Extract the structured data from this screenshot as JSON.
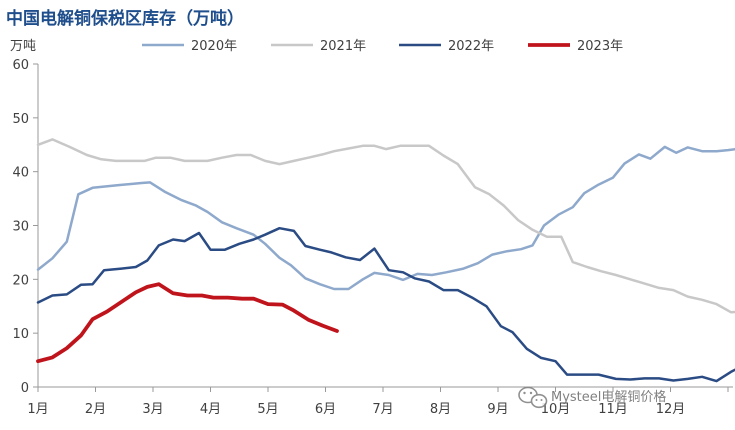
{
  "chart_data": {
    "type": "line",
    "title": "中国电解铜保税区库存（万吨）",
    "ylabel": "万吨",
    "ylim": [
      0,
      60
    ],
    "yticks": [
      0,
      10,
      20,
      30,
      40,
      50,
      60
    ],
    "xlim": [
      0,
      12
    ],
    "months": [
      "1月",
      "2月",
      "3月",
      "4月",
      "5月",
      "6月",
      "7月",
      "8月",
      "9月",
      "10月",
      "11月",
      "12月"
    ],
    "grid": false,
    "legend_position": "top",
    "series": [
      {
        "name": "2020年",
        "color": "#8ea9cc",
        "width": 2.5,
        "points": [
          [
            0.0,
            21.8
          ],
          [
            0.25,
            23.9
          ],
          [
            0.5,
            27.0
          ],
          [
            0.7,
            35.8
          ],
          [
            0.95,
            37.0
          ],
          [
            1.4,
            37.5
          ],
          [
            1.8,
            37.9
          ],
          [
            1.95,
            38.0
          ],
          [
            2.2,
            36.3
          ],
          [
            2.5,
            34.7
          ],
          [
            2.75,
            33.7
          ],
          [
            2.95,
            32.5
          ],
          [
            3.2,
            30.6
          ],
          [
            3.45,
            29.5
          ],
          [
            3.75,
            28.3
          ],
          [
            3.95,
            26.6
          ],
          [
            4.2,
            24.0
          ],
          [
            4.4,
            22.6
          ],
          [
            4.65,
            20.2
          ],
          [
            4.9,
            19.1
          ],
          [
            5.15,
            18.2
          ],
          [
            5.4,
            18.2
          ],
          [
            5.65,
            20.0
          ],
          [
            5.85,
            21.2
          ],
          [
            6.1,
            20.8
          ],
          [
            6.35,
            19.9
          ],
          [
            6.6,
            21.0
          ],
          [
            6.85,
            20.8
          ],
          [
            7.1,
            21.3
          ],
          [
            7.4,
            22.0
          ],
          [
            7.65,
            23.0
          ],
          [
            7.9,
            24.6
          ],
          [
            8.15,
            25.2
          ],
          [
            8.4,
            25.6
          ],
          [
            8.6,
            26.3
          ],
          [
            8.8,
            30.0
          ],
          [
            9.05,
            32.0
          ],
          [
            9.3,
            33.4
          ],
          [
            9.5,
            36.0
          ],
          [
            9.75,
            37.6
          ],
          [
            10.0,
            38.9
          ],
          [
            10.2,
            41.5
          ],
          [
            10.45,
            43.2
          ],
          [
            10.65,
            42.4
          ],
          [
            10.9,
            44.6
          ],
          [
            11.1,
            43.5
          ],
          [
            11.3,
            44.5
          ],
          [
            11.55,
            43.8
          ],
          [
            11.8,
            43.8
          ],
          [
            12.0,
            44.0
          ],
          [
            12.3,
            44.4
          ]
        ]
      },
      {
        "name": "2021年",
        "color": "#c8c8c8",
        "width": 2.5,
        "points": [
          [
            0.0,
            45.0
          ],
          [
            0.25,
            46.0
          ],
          [
            0.55,
            44.6
          ],
          [
            0.85,
            43.1
          ],
          [
            1.1,
            42.3
          ],
          [
            1.35,
            42.0
          ],
          [
            1.65,
            42.0
          ],
          [
            1.85,
            42.0
          ],
          [
            2.05,
            42.6
          ],
          [
            2.3,
            42.6
          ],
          [
            2.55,
            42.0
          ],
          [
            2.8,
            42.0
          ],
          [
            2.95,
            42.0
          ],
          [
            3.2,
            42.6
          ],
          [
            3.45,
            43.1
          ],
          [
            3.7,
            43.1
          ],
          [
            3.95,
            42.0
          ],
          [
            4.2,
            41.4
          ],
          [
            4.45,
            42.0
          ],
          [
            4.7,
            42.6
          ],
          [
            4.95,
            43.2
          ],
          [
            5.15,
            43.8
          ],
          [
            5.4,
            44.3
          ],
          [
            5.65,
            44.8
          ],
          [
            5.85,
            44.8
          ],
          [
            6.05,
            44.2
          ],
          [
            6.3,
            44.8
          ],
          [
            6.6,
            44.8
          ],
          [
            6.8,
            44.8
          ],
          [
            7.05,
            43.0
          ],
          [
            7.3,
            41.4
          ],
          [
            7.6,
            37.1
          ],
          [
            7.85,
            35.8
          ],
          [
            8.1,
            33.7
          ],
          [
            8.35,
            31.0
          ],
          [
            8.6,
            29.2
          ],
          [
            8.85,
            27.9
          ],
          [
            9.1,
            27.9
          ],
          [
            9.3,
            23.2
          ],
          [
            9.55,
            22.3
          ],
          [
            9.8,
            21.5
          ],
          [
            10.05,
            20.8
          ],
          [
            10.3,
            20.0
          ],
          [
            10.55,
            19.2
          ],
          [
            10.8,
            18.4
          ],
          [
            11.05,
            18.0
          ],
          [
            11.3,
            16.8
          ],
          [
            11.55,
            16.2
          ],
          [
            11.8,
            15.4
          ],
          [
            12.05,
            13.9
          ],
          [
            12.3,
            14.0
          ],
          [
            12.6,
            13.4
          ]
        ]
      },
      {
        "name": "2022年",
        "color": "#2a4b84",
        "width": 2.5,
        "points": [
          [
            0.0,
            15.7
          ],
          [
            0.25,
            17.0
          ],
          [
            0.5,
            17.2
          ],
          [
            0.75,
            19.0
          ],
          [
            0.95,
            19.1
          ],
          [
            1.15,
            21.7
          ],
          [
            1.45,
            22.0
          ],
          [
            1.7,
            22.3
          ],
          [
            1.9,
            23.5
          ],
          [
            2.1,
            26.3
          ],
          [
            2.35,
            27.4
          ],
          [
            2.55,
            27.1
          ],
          [
            2.8,
            28.6
          ],
          [
            3.0,
            25.5
          ],
          [
            3.25,
            25.5
          ],
          [
            3.5,
            26.6
          ],
          [
            3.75,
            27.4
          ],
          [
            3.95,
            28.3
          ],
          [
            4.2,
            29.5
          ],
          [
            4.45,
            29.0
          ],
          [
            4.65,
            26.2
          ],
          [
            4.9,
            25.5
          ],
          [
            5.1,
            25.0
          ],
          [
            5.35,
            24.1
          ],
          [
            5.6,
            23.6
          ],
          [
            5.85,
            25.7
          ],
          [
            6.1,
            21.7
          ],
          [
            6.35,
            21.3
          ],
          [
            6.55,
            20.2
          ],
          [
            6.8,
            19.6
          ],
          [
            7.05,
            18.0
          ],
          [
            7.3,
            18.0
          ],
          [
            7.55,
            16.6
          ],
          [
            7.8,
            15.0
          ],
          [
            8.05,
            11.3
          ],
          [
            8.25,
            10.2
          ],
          [
            8.5,
            7.1
          ],
          [
            8.75,
            5.4
          ],
          [
            9.0,
            4.8
          ],
          [
            9.2,
            2.3
          ],
          [
            9.45,
            2.3
          ],
          [
            9.75,
            2.3
          ],
          [
            10.05,
            1.5
          ],
          [
            10.3,
            1.4
          ],
          [
            10.55,
            1.6
          ],
          [
            10.8,
            1.6
          ],
          [
            11.05,
            1.2
          ],
          [
            11.3,
            1.5
          ],
          [
            11.55,
            1.9
          ],
          [
            11.8,
            1.1
          ],
          [
            12.05,
            2.8
          ],
          [
            12.35,
            4.5
          ],
          [
            12.6,
            4.8
          ]
        ]
      },
      {
        "name": "2023年",
        "color": "#c0141c",
        "width": 3.8,
        "points": [
          [
            0.0,
            4.8
          ],
          [
            0.25,
            5.5
          ],
          [
            0.5,
            7.2
          ],
          [
            0.75,
            9.6
          ],
          [
            0.95,
            12.6
          ],
          [
            1.2,
            14.0
          ],
          [
            1.45,
            15.8
          ],
          [
            1.7,
            17.6
          ],
          [
            1.9,
            18.6
          ],
          [
            2.1,
            19.1
          ],
          [
            2.35,
            17.4
          ],
          [
            2.6,
            17.0
          ],
          [
            2.85,
            17.0
          ],
          [
            3.05,
            16.6
          ],
          [
            3.3,
            16.6
          ],
          [
            3.55,
            16.4
          ],
          [
            3.75,
            16.4
          ],
          [
            4.0,
            15.4
          ],
          [
            4.25,
            15.3
          ],
          [
            4.45,
            14.2
          ],
          [
            4.7,
            12.5
          ],
          [
            4.95,
            11.4
          ],
          [
            5.2,
            10.4
          ]
        ]
      }
    ]
  },
  "watermark": {
    "text": "Mysteel电解铜价格",
    "icon": "wechat-icon"
  }
}
